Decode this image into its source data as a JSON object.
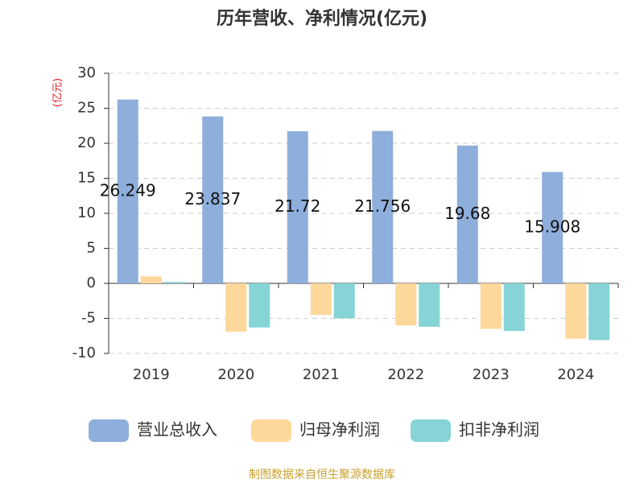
{
  "chart_data": {
    "type": "bar",
    "title": "历年营收、净利情况(亿元)",
    "y_label": "(亿元)",
    "categories": [
      "2019",
      "2020",
      "2021",
      "2022",
      "2023",
      "2024"
    ],
    "series": [
      {
        "name": "营业总收入",
        "color": "#8eaedb",
        "values": [
          26.249,
          23.837,
          21.72,
          21.756,
          19.68,
          15.908
        ],
        "show_labels": true
      },
      {
        "name": "归母净利润",
        "color": "#fdd89a",
        "values": [
          1.0,
          -6.9,
          -4.5,
          -6.0,
          -6.5,
          -7.9
        ]
      },
      {
        "name": "扣非净利润",
        "color": "#86d4d6",
        "values": [
          0.2,
          -6.3,
          -5.0,
          -6.2,
          -6.8,
          -8.1
        ]
      }
    ],
    "ylim": [
      -10,
      30
    ],
    "yticks": [
      -10,
      -5,
      0,
      5,
      10,
      15,
      20,
      25,
      30
    ],
    "grid": true,
    "source": "制图数据来自恒生聚源数据库"
  }
}
